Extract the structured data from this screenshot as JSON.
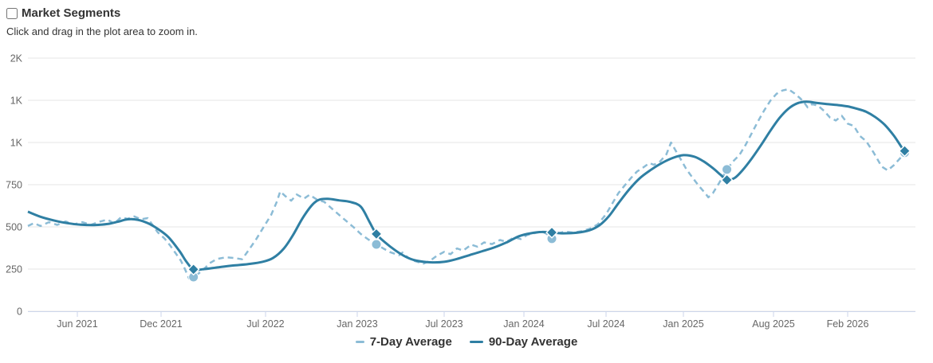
{
  "header": {
    "title": "Market Segments",
    "title_checkbox_checked": false,
    "subtitle": "Click and drag in the plot area to zoom in."
  },
  "colors": {
    "series_7day": "#8cbcd6",
    "series_90day": "#2f7fa3",
    "gridline": "#e6e6e6",
    "axis_line": "#ccd6eb",
    "tick_label": "#666666",
    "text": "#333333",
    "background": "#ffffff"
  },
  "chart_data": {
    "type": "line",
    "title": "Market Segments",
    "subtitle": "Click and drag in the plot area to zoom in.",
    "legend_position": "bottom-center",
    "grid": true,
    "y_axis": {
      "range": [
        0,
        1500
      ],
      "ticks": [
        {
          "label": "2K",
          "value": 1500
        },
        {
          "label": "1K",
          "value": 1250
        },
        {
          "label": "1K",
          "value": 1000
        },
        {
          "label": "750",
          "value": 750
        },
        {
          "label": "500",
          "value": 500
        },
        {
          "label": "250",
          "value": 250
        },
        {
          "label": "0",
          "value": 0
        }
      ]
    },
    "x_axis": {
      "type": "time",
      "ticks": [
        {
          "label": "Jun 2021",
          "year": 2021.42
        },
        {
          "label": "Dec 2021",
          "year": 2021.92
        },
        {
          "label": "Jul 2022",
          "year": 2022.5
        },
        {
          "label": "Jan 2023",
          "year": 2023.0
        },
        {
          "label": "Jul 2023",
          "year": 2023.5
        },
        {
          "label": "Jan 2024",
          "year": 2024.0
        },
        {
          "label": "Jul 2024",
          "year": 2024.5
        },
        {
          "label": "Jan 2025",
          "year": 2025.0
        },
        {
          "label": "Aug 2025",
          "year": 2025.58
        },
        {
          "label": "Feb 2026",
          "year": 2026.08
        }
      ],
      "anchor_map": [
        [
          2021.125,
          35
        ],
        [
          2021.42,
          97
        ],
        [
          2021.92,
          202
        ],
        [
          2022.5,
          333
        ],
        [
          2023.0,
          448
        ],
        [
          2023.5,
          557
        ],
        [
          2024.0,
          657
        ],
        [
          2024.5,
          760
        ],
        [
          2025.0,
          857
        ],
        [
          2025.58,
          970
        ],
        [
          2026.08,
          1063
        ],
        [
          2026.52,
          1148
        ]
      ]
    },
    "series": [
      {
        "name": "7-Day Average",
        "color": "#8cbcd6",
        "dash": "7 5",
        "width": 2.5,
        "smooth": false,
        "marker_shape": "circle",
        "markers": [
          [
            2022.1,
            203
          ],
          [
            2023.11,
            396
          ],
          [
            2024.17,
            430
          ],
          [
            2025.28,
            840
          ],
          [
            2026.45,
            940
          ]
        ],
        "points": [
          [
            2021.125,
            505
          ],
          [
            2021.16,
            522
          ],
          [
            2021.2,
            505
          ],
          [
            2021.25,
            528
          ],
          [
            2021.3,
            512
          ],
          [
            2021.35,
            532
          ],
          [
            2021.4,
            515
          ],
          [
            2021.45,
            528
          ],
          [
            2021.5,
            512
          ],
          [
            2021.55,
            530
          ],
          [
            2021.6,
            543
          ],
          [
            2021.64,
            520
          ],
          [
            2021.68,
            556
          ],
          [
            2021.72,
            548
          ],
          [
            2021.76,
            562
          ],
          [
            2021.8,
            545
          ],
          [
            2021.84,
            552
          ],
          [
            2021.87,
            510
          ],
          [
            2021.9,
            468
          ],
          [
            2021.94,
            430
          ],
          [
            2021.97,
            390
          ],
          [
            2022.0,
            345
          ],
          [
            2022.03,
            300
          ],
          [
            2022.05,
            255
          ],
          [
            2022.075,
            195
          ],
          [
            2022.1,
            203
          ],
          [
            2022.13,
            225
          ],
          [
            2022.16,
            252
          ],
          [
            2022.19,
            285
          ],
          [
            2022.23,
            310
          ],
          [
            2022.28,
            320
          ],
          [
            2022.33,
            315
          ],
          [
            2022.37,
            308
          ],
          [
            2022.41,
            368
          ],
          [
            2022.45,
            430
          ],
          [
            2022.49,
            500
          ],
          [
            2022.53,
            570
          ],
          [
            2022.56,
            645
          ],
          [
            2022.58,
            710
          ],
          [
            2022.61,
            680
          ],
          [
            2022.64,
            655
          ],
          [
            2022.67,
            692
          ],
          [
            2022.71,
            668
          ],
          [
            2022.74,
            690
          ],
          [
            2022.78,
            662
          ],
          [
            2022.82,
            648
          ],
          [
            2022.86,
            610
          ],
          [
            2022.9,
            572
          ],
          [
            2022.94,
            535
          ],
          [
            2022.98,
            498
          ],
          [
            2023.02,
            458
          ],
          [
            2023.06,
            428
          ],
          [
            2023.11,
            396
          ],
          [
            2023.15,
            372
          ],
          [
            2023.19,
            350
          ],
          [
            2023.24,
            332
          ],
          [
            2023.26,
            348
          ],
          [
            2023.29,
            320
          ],
          [
            2023.33,
            298
          ],
          [
            2023.38,
            282
          ],
          [
            2023.42,
            300
          ],
          [
            2023.46,
            330
          ],
          [
            2023.5,
            352
          ],
          [
            2023.54,
            338
          ],
          [
            2023.58,
            372
          ],
          [
            2023.62,
            360
          ],
          [
            2023.67,
            395
          ],
          [
            2023.71,
            382
          ],
          [
            2023.75,
            408
          ],
          [
            2023.8,
            398
          ],
          [
            2023.85,
            422
          ],
          [
            2023.89,
            412
          ],
          [
            2023.94,
            438
          ],
          [
            2023.98,
            428
          ],
          [
            2024.02,
            452
          ],
          [
            2024.07,
            464
          ],
          [
            2024.11,
            472
          ],
          [
            2024.14,
            458
          ],
          [
            2024.17,
            430
          ],
          [
            2024.21,
            462
          ],
          [
            2024.25,
            472
          ],
          [
            2024.3,
            466
          ],
          [
            2024.35,
            474
          ],
          [
            2024.4,
            488
          ],
          [
            2024.45,
            515
          ],
          [
            2024.5,
            575
          ],
          [
            2024.54,
            638
          ],
          [
            2024.58,
            700
          ],
          [
            2024.62,
            745
          ],
          [
            2024.66,
            788
          ],
          [
            2024.7,
            828
          ],
          [
            2024.74,
            852
          ],
          [
            2024.78,
            878
          ],
          [
            2024.81,
            868
          ],
          [
            2024.85,
            888
          ],
          [
            2024.89,
            930
          ],
          [
            2024.92,
            1000
          ],
          [
            2024.95,
            952
          ],
          [
            2024.98,
            905
          ],
          [
            2025.02,
            840
          ],
          [
            2025.06,
            790
          ],
          [
            2025.1,
            742
          ],
          [
            2025.14,
            700
          ],
          [
            2025.16,
            675
          ],
          [
            2025.19,
            700
          ],
          [
            2025.23,
            760
          ],
          [
            2025.26,
            808
          ],
          [
            2025.28,
            840
          ],
          [
            2025.32,
            888
          ],
          [
            2025.36,
            925
          ],
          [
            2025.4,
            985
          ],
          [
            2025.44,
            1055
          ],
          [
            2025.48,
            1125
          ],
          [
            2025.52,
            1190
          ],
          [
            2025.56,
            1248
          ],
          [
            2025.6,
            1288
          ],
          [
            2025.64,
            1308
          ],
          [
            2025.68,
            1316
          ],
          [
            2025.72,
            1292
          ],
          [
            2025.76,
            1262
          ],
          [
            2025.79,
            1232
          ],
          [
            2025.81,
            1208
          ],
          [
            2025.84,
            1228
          ],
          [
            2025.88,
            1218
          ],
          [
            2025.92,
            1188
          ],
          [
            2025.96,
            1148
          ],
          [
            2026.0,
            1130
          ],
          [
            2026.04,
            1158
          ],
          [
            2026.08,
            1112
          ],
          [
            2026.12,
            1098
          ],
          [
            2026.16,
            1038
          ],
          [
            2026.2,
            1008
          ],
          [
            2026.25,
            938
          ],
          [
            2026.3,
            858
          ],
          [
            2026.34,
            835
          ],
          [
            2026.38,
            866
          ],
          [
            2026.42,
            906
          ],
          [
            2026.45,
            940
          ]
        ]
      },
      {
        "name": "90-Day Average",
        "color": "#2f7fa3",
        "dash": null,
        "width": 3,
        "smooth": true,
        "marker_shape": "diamond",
        "markers": [
          [
            2022.1,
            248
          ],
          [
            2023.11,
            458
          ],
          [
            2024.17,
            467
          ],
          [
            2025.28,
            778
          ],
          [
            2026.45,
            950
          ]
        ],
        "points": [
          [
            2021.125,
            590
          ],
          [
            2021.2,
            560
          ],
          [
            2021.28,
            538
          ],
          [
            2021.36,
            522
          ],
          [
            2021.44,
            513
          ],
          [
            2021.52,
            511
          ],
          [
            2021.6,
            517
          ],
          [
            2021.66,
            530
          ],
          [
            2021.72,
            545
          ],
          [
            2021.78,
            542
          ],
          [
            2021.84,
            522
          ],
          [
            2021.9,
            488
          ],
          [
            2021.96,
            440
          ],
          [
            2022.02,
            360
          ],
          [
            2022.06,
            295
          ],
          [
            2022.1,
            248
          ],
          [
            2022.16,
            250
          ],
          [
            2022.24,
            261
          ],
          [
            2022.32,
            271
          ],
          [
            2022.4,
            279
          ],
          [
            2022.48,
            292
          ],
          [
            2022.54,
            315
          ],
          [
            2022.6,
            372
          ],
          [
            2022.65,
            452
          ],
          [
            2022.7,
            548
          ],
          [
            2022.75,
            625
          ],
          [
            2022.79,
            660
          ],
          [
            2022.84,
            666
          ],
          [
            2022.9,
            657
          ],
          [
            2022.96,
            648
          ],
          [
            2023.02,
            620
          ],
          [
            2023.07,
            530
          ],
          [
            2023.11,
            458
          ],
          [
            2023.16,
            408
          ],
          [
            2023.22,
            360
          ],
          [
            2023.28,
            322
          ],
          [
            2023.34,
            300
          ],
          [
            2023.42,
            290
          ],
          [
            2023.5,
            293
          ],
          [
            2023.58,
            310
          ],
          [
            2023.66,
            333
          ],
          [
            2023.74,
            356
          ],
          [
            2023.82,
            380
          ],
          [
            2023.9,
            412
          ],
          [
            2023.97,
            445
          ],
          [
            2024.04,
            462
          ],
          [
            2024.11,
            470
          ],
          [
            2024.17,
            467
          ],
          [
            2024.24,
            462
          ],
          [
            2024.32,
            465
          ],
          [
            2024.4,
            480
          ],
          [
            2024.46,
            510
          ],
          [
            2024.52,
            565
          ],
          [
            2024.58,
            640
          ],
          [
            2024.65,
            722
          ],
          [
            2024.72,
            790
          ],
          [
            2024.79,
            838
          ],
          [
            2024.86,
            878
          ],
          [
            2024.93,
            908
          ],
          [
            2025.0,
            925
          ],
          [
            2025.07,
            916
          ],
          [
            2025.13,
            888
          ],
          [
            2025.19,
            848
          ],
          [
            2025.24,
            808
          ],
          [
            2025.28,
            778
          ],
          [
            2025.33,
            790
          ],
          [
            2025.38,
            835
          ],
          [
            2025.44,
            905
          ],
          [
            2025.5,
            985
          ],
          [
            2025.56,
            1070
          ],
          [
            2025.62,
            1145
          ],
          [
            2025.68,
            1200
          ],
          [
            2025.74,
            1232
          ],
          [
            2025.8,
            1242
          ],
          [
            2025.87,
            1235
          ],
          [
            2025.94,
            1228
          ],
          [
            2026.01,
            1222
          ],
          [
            2026.08,
            1214
          ],
          [
            2026.14,
            1200
          ],
          [
            2026.2,
            1182
          ],
          [
            2026.26,
            1150
          ],
          [
            2026.32,
            1105
          ],
          [
            2026.38,
            1040
          ],
          [
            2026.43,
            972
          ],
          [
            2026.45,
            950
          ]
        ]
      }
    ]
  }
}
